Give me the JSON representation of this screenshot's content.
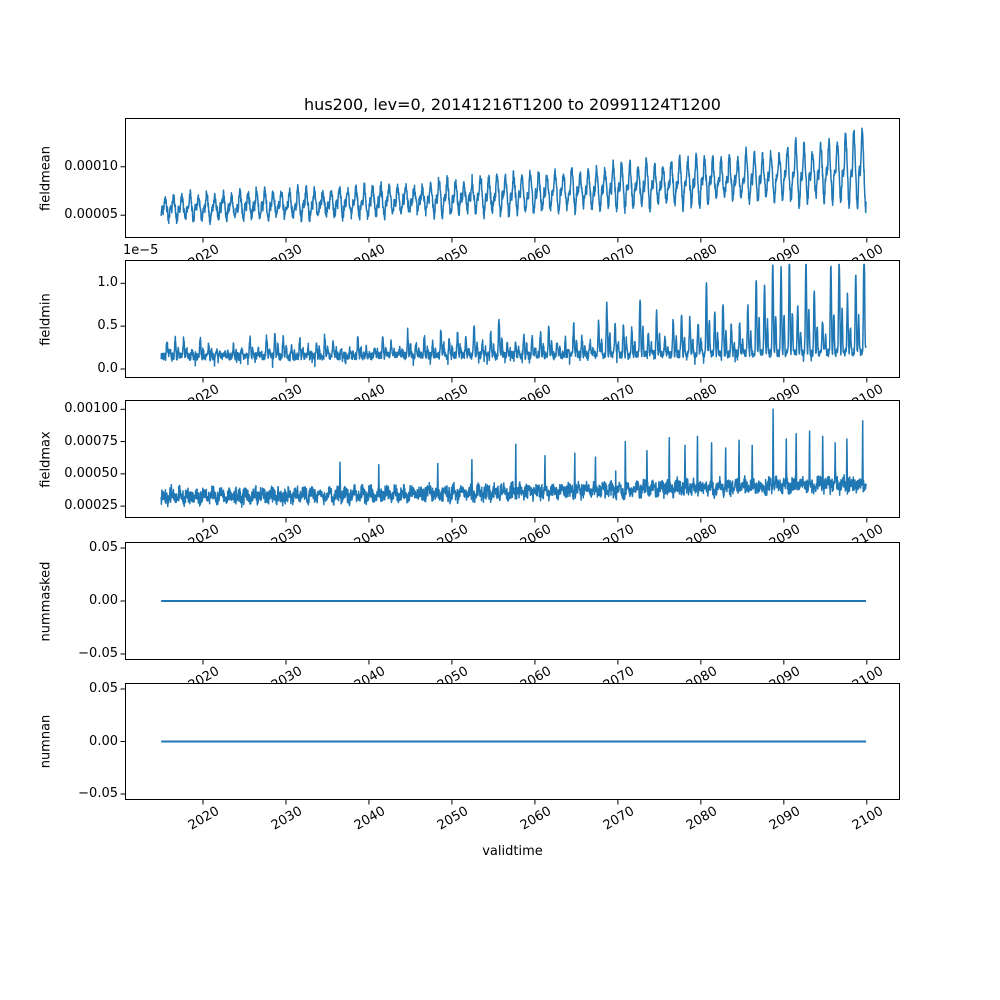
{
  "chart_data": {
    "type": "line",
    "title": "hus200, lev=0, 20141216T1200 to 20991124T1200",
    "xlabel": "validtime",
    "line_color": "#1f77b4",
    "axes_color": "#000000",
    "background": "#ffffff",
    "grid": false,
    "legend": "none",
    "x_ticks": [
      2020,
      2030,
      2040,
      2050,
      2060,
      2070,
      2080,
      2090,
      2100
    ],
    "x_tick_labels": [
      "2020",
      "2030",
      "2040",
      "2050",
      "2060",
      "2070",
      "2080",
      "2090",
      "2100"
    ],
    "x_tick_rotation_deg": 30,
    "xlim": [
      2010.6,
      2104.0
    ],
    "x_data_range": [
      2014.96,
      2099.9
    ],
    "time_range_start": "20141216T1200",
    "time_range_end": "20991124T1200",
    "n_points": 3000,
    "subplots": [
      {
        "name": "fieldmean",
        "ylabel": "fieldmean",
        "ylim": [
          2.65e-05,
          0.0001503
        ],
        "ytick_values": [
          5e-05,
          0.0001
        ],
        "ytick_labels": [
          "0.00005",
          "0.00010"
        ],
        "series": {
          "kind": "seasonal_trend",
          "seed": 42,
          "anchor_years": [
            2015,
            2025,
            2035,
            2045,
            2055,
            2065,
            2075,
            2085,
            2095,
            2100
          ],
          "base": [
            5.6e-05,
            5.85e-05,
            6.1e-05,
            6.45e-05,
            6.9e-05,
            7.4e-05,
            8e-05,
            8.6e-05,
            9.2e-05,
            9.4e-05
          ],
          "amp": [
            1.2e-05,
            1.3e-05,
            1.45e-05,
            1.6e-05,
            1.8e-05,
            2e-05,
            2.3e-05,
            2.6e-05,
            3e-05,
            3.9e-05
          ],
          "noise": 5e-06,
          "neg_damp": 0.72
        }
      },
      {
        "name": "fieldmin",
        "ylabel": "fieldmin",
        "offset_text": "1e−5",
        "ylim": [
          -1.05e-06,
          1.272e-05
        ],
        "ytick_values": [
          0.0,
          5e-06,
          1e-05
        ],
        "ytick_labels": [
          "0.0",
          "0.5",
          "1.0"
        ],
        "series": {
          "kind": "spiky",
          "seed": 7,
          "anchor_years": [
            2015,
            2025,
            2035,
            2045,
            2055,
            2065,
            2075,
            2085,
            2095,
            2100
          ],
          "base": [
            1.4e-06,
            1.45e-06,
            1.5e-06,
            1.55e-06,
            1.6e-06,
            1.65e-06,
            1.7e-06,
            1.8e-06,
            1.9e-06,
            2e-06
          ],
          "spike_amp": [
            1.5e-06,
            1.8e-06,
            2.1e-06,
            2.5e-06,
            3.1e-06,
            4e-06,
            5.3e-06,
            7.2e-06,
            9.3e-06,
            1.02e-05
          ],
          "noise": 4.5e-07,
          "floor": 1e-07,
          "cap": 1.22e-05,
          "max_spike_year": 2088,
          "max_spike_value": 1.21e-05
        }
      },
      {
        "name": "fieldmax",
        "ylabel": "fieldmax",
        "ylim": [
          0.000158,
          0.001072
        ],
        "ytick_values": [
          0.00025,
          0.0005,
          0.00075,
          0.001
        ],
        "ytick_labels": [
          "0.00025",
          "0.00050",
          "0.00075",
          "0.00100"
        ],
        "series": {
          "kind": "band_spikes",
          "seed": 13,
          "anchor_years": [
            2015,
            2025,
            2035,
            2045,
            2055,
            2065,
            2075,
            2085,
            2095,
            2100
          ],
          "center": [
            0.000325,
            0.00033,
            0.000335,
            0.000345,
            0.000355,
            0.00037,
            0.000385,
            0.0004,
            0.000415,
            0.000425
          ],
          "noise": 5.5e-05,
          "seasonal": 2.2e-05,
          "spikes": [
            [
              2036.5,
              0.00059
            ],
            [
              2041.2,
              0.00057
            ],
            [
              2048.3,
              0.00058
            ],
            [
              2052.4,
              0.00061
            ],
            [
              2057.7,
              0.00073
            ],
            [
              2061.2,
              0.00064
            ],
            [
              2064.8,
              0.00066
            ],
            [
              2067.3,
              0.00063
            ],
            [
              2070.9,
              0.00075
            ],
            [
              2073.5,
              0.00068
            ],
            [
              2076.2,
              0.00078
            ],
            [
              2078.1,
              0.00072
            ],
            [
              2079.6,
              0.00079
            ],
            [
              2081.3,
              0.00074
            ],
            [
              2083.0,
              0.0007
            ],
            [
              2084.6,
              0.00076
            ],
            [
              2086.2,
              0.00072
            ],
            [
              2088.7,
              0.001001
            ],
            [
              2090.3,
              0.00077
            ],
            [
              2091.5,
              0.00081
            ],
            [
              2093.1,
              0.00083
            ],
            [
              2094.7,
              0.00079
            ],
            [
              2096.2,
              0.00074
            ],
            [
              2097.6,
              0.00077
            ],
            [
              2099.5,
              0.00091
            ]
          ]
        }
      },
      {
        "name": "nummasked",
        "ylabel": "nummasked",
        "ylim": [
          -0.0557,
          0.0557
        ],
        "ytick_values": [
          -0.05,
          0.0,
          0.05
        ],
        "ytick_labels": [
          "−0.05",
          "0.00",
          "0.05"
        ],
        "series": {
          "kind": "constant",
          "value": 0.0
        }
      },
      {
        "name": "numnan",
        "ylabel": "numnan",
        "ylim": [
          -0.0557,
          0.0557
        ],
        "ytick_values": [
          -0.05,
          0.0,
          0.05
        ],
        "ytick_labels": [
          "−0.05",
          "0.00",
          "0.05"
        ],
        "series": {
          "kind": "constant",
          "value": 0.0
        }
      }
    ]
  }
}
